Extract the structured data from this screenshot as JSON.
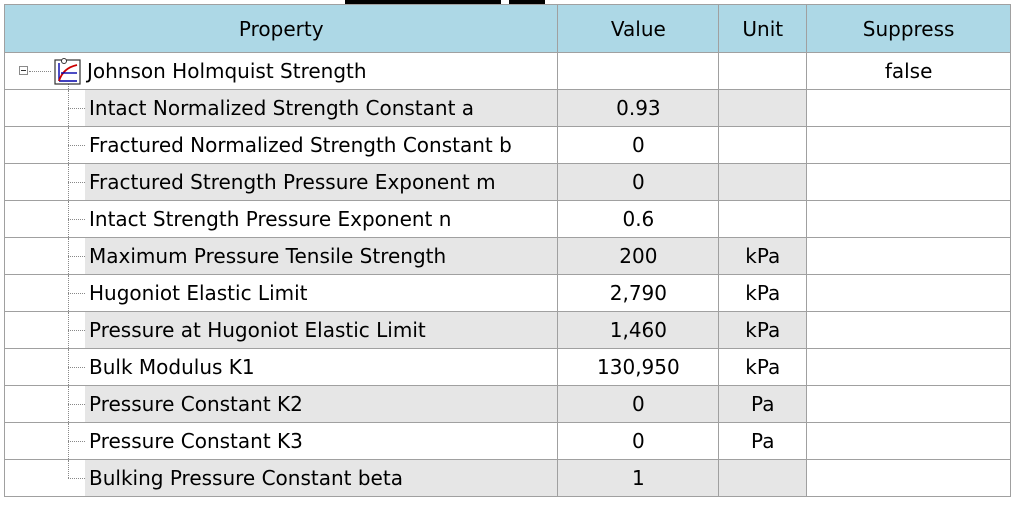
{
  "header": {
    "property": "Property",
    "value": "Value",
    "unit": "Unit",
    "suppress": "Suppress"
  },
  "group": {
    "name": "Johnson Holmquist Strength",
    "value": "",
    "unit": "",
    "suppress": "false",
    "icon": "strength-model-icon"
  },
  "rows": [
    {
      "property": "Intact Normalized Strength Constant a",
      "value": "0.93",
      "unit": "",
      "shaded": true
    },
    {
      "property": "Fractured Normalized Strength Constant b",
      "value": "0",
      "unit": "",
      "shaded": false
    },
    {
      "property": "Fractured Strength Pressure Exponent m",
      "value": "0",
      "unit": "",
      "shaded": true
    },
    {
      "property": "Intact Strength Pressure Exponent n",
      "value": "0.6",
      "unit": "",
      "shaded": false
    },
    {
      "property": "Maximum Pressure Tensile Strength",
      "value": "200",
      "unit": "kPa",
      "shaded": true
    },
    {
      "property": "Hugoniot Elastic Limit",
      "value": "2,790",
      "unit": "kPa",
      "shaded": false
    },
    {
      "property": "Pressure at Hugoniot Elastic Limit",
      "value": "1,460",
      "unit": "kPa",
      "shaded": true
    },
    {
      "property": "Bulk Modulus K1",
      "value": "130,950",
      "unit": "kPa",
      "shaded": false
    },
    {
      "property": "Pressure Constant K2",
      "value": "0",
      "unit": "Pa",
      "shaded": true
    },
    {
      "property": "Pressure Constant K3",
      "value": "0",
      "unit": "Pa",
      "shaded": false
    },
    {
      "property": "Bulking Pressure Constant beta",
      "value": "1",
      "unit": "",
      "shaded": true
    }
  ],
  "colors": {
    "header_bg": "#add8e6",
    "shade_bg": "#e6e6e6",
    "grid_line": "#a0a0a0"
  }
}
